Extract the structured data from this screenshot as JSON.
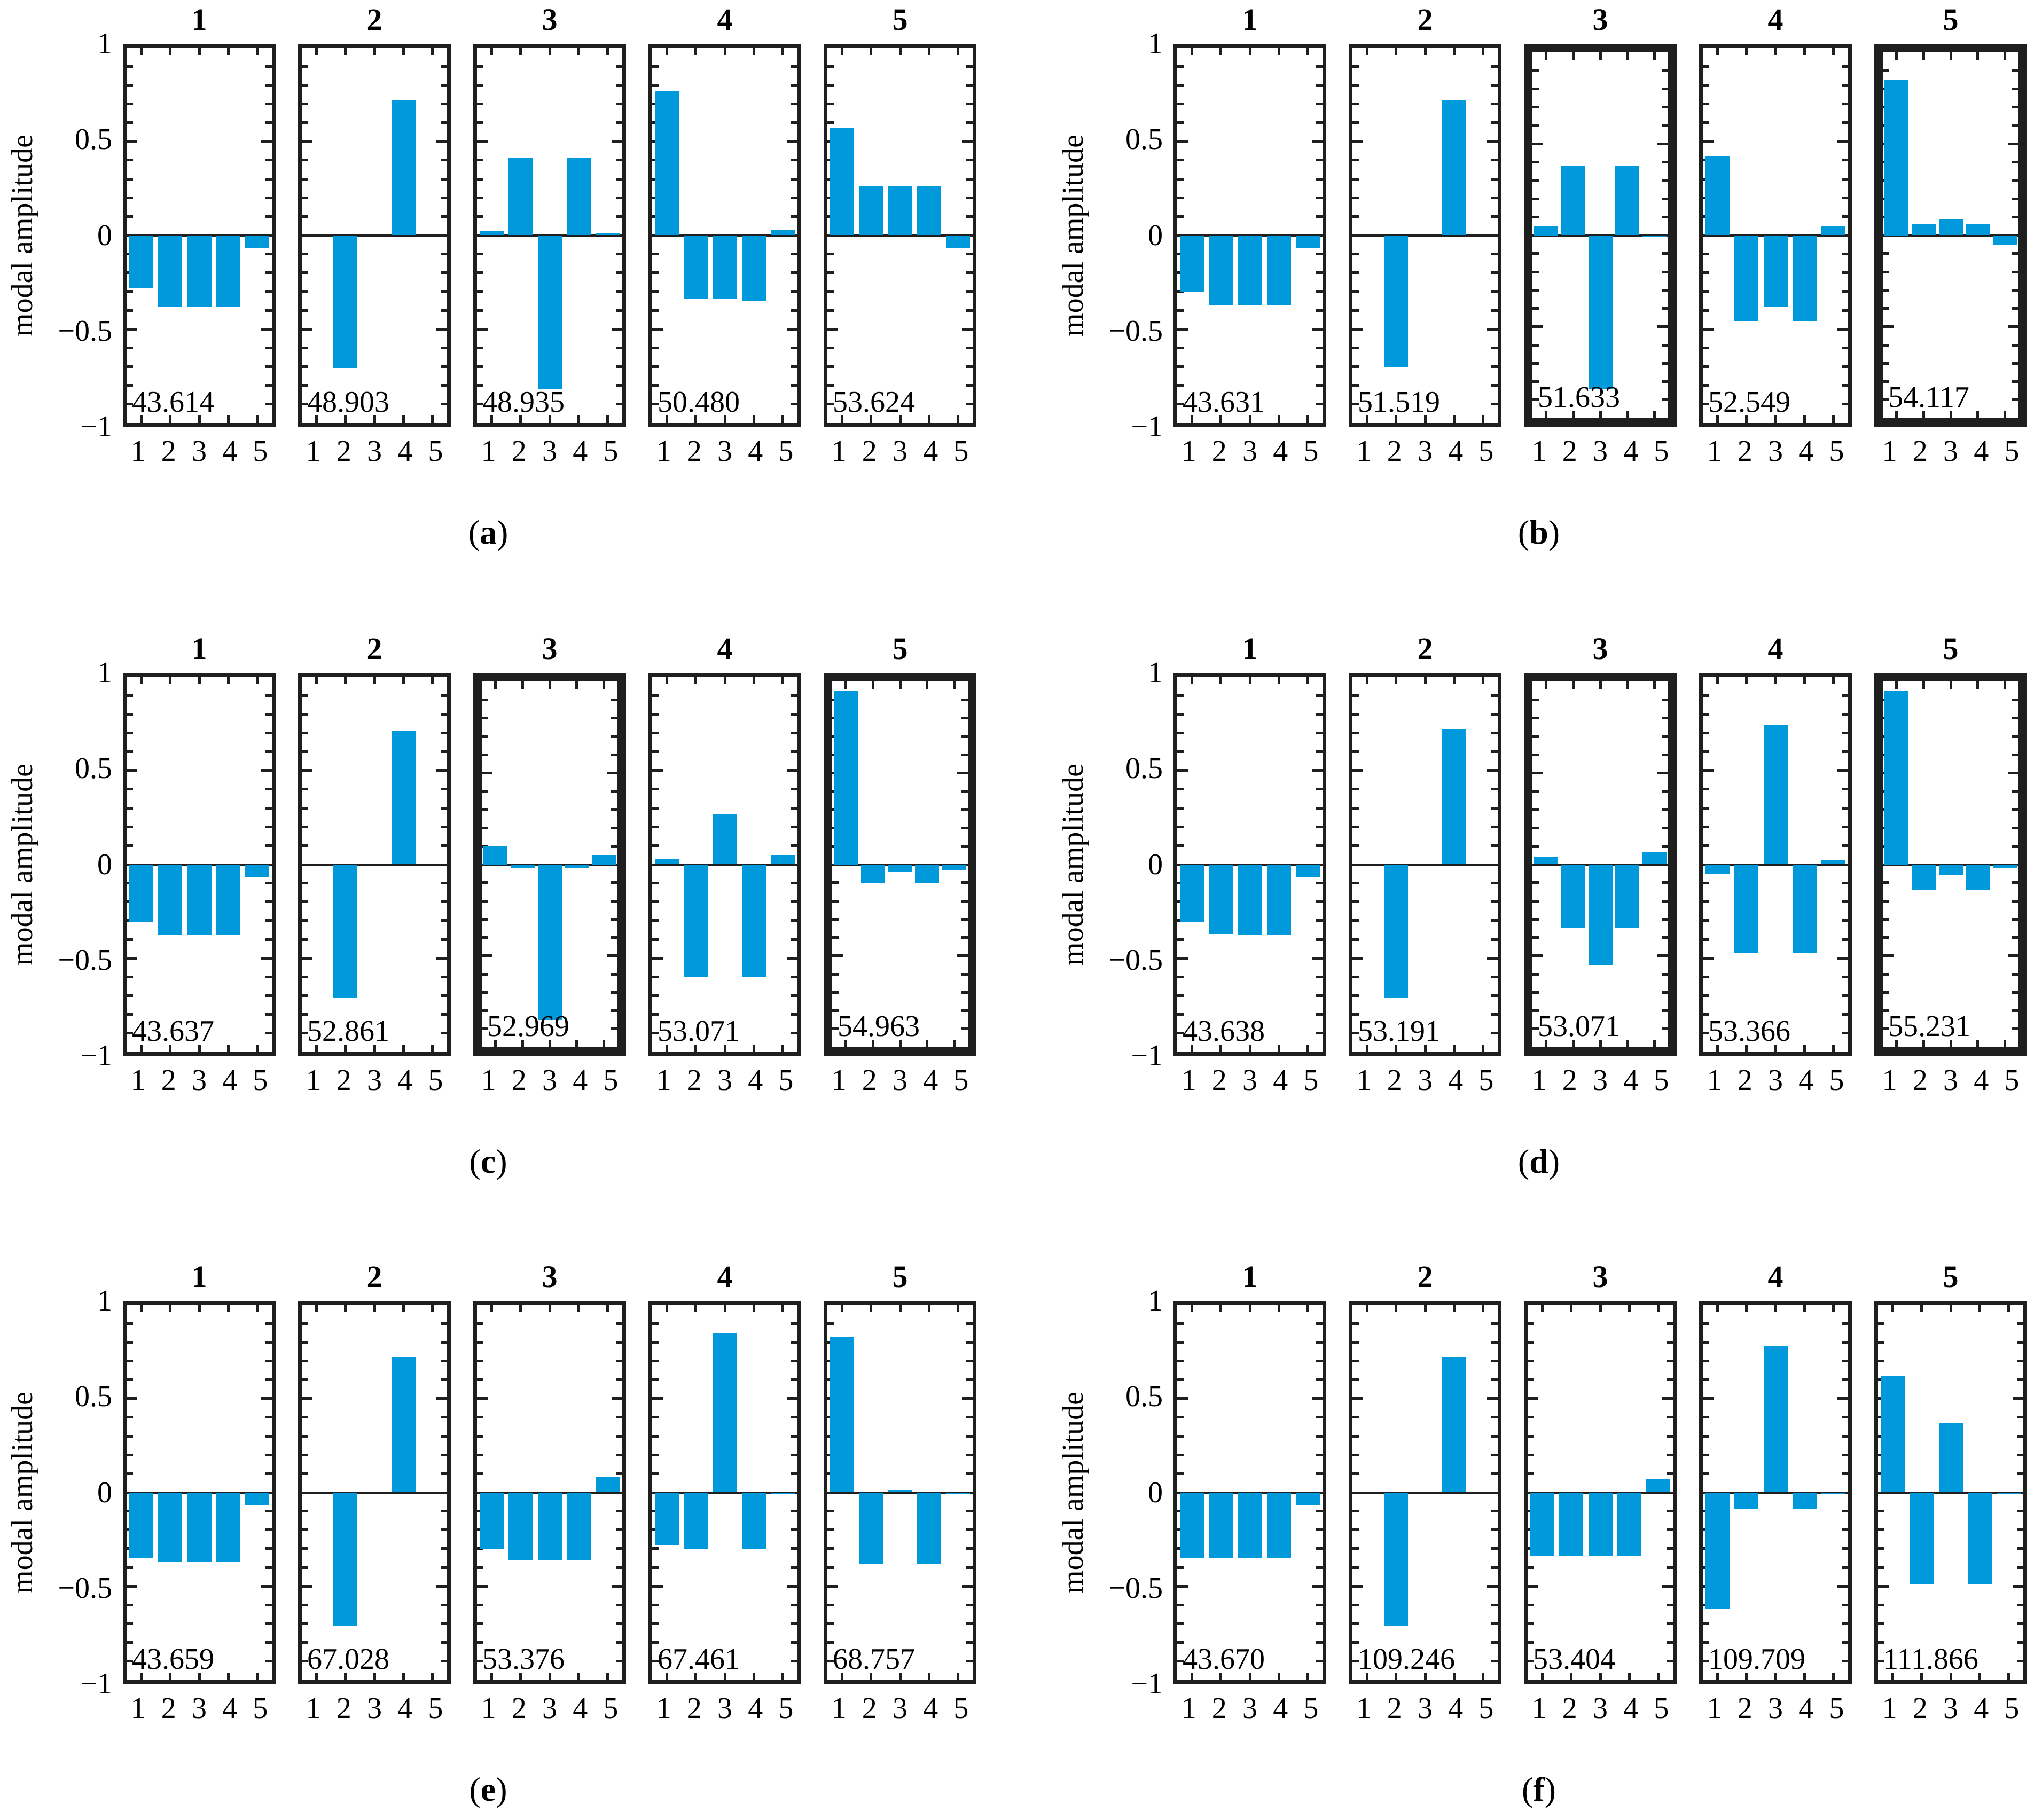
{
  "figure": {
    "background": "#ffffff",
    "style": {
      "bar_color": "#0099db",
      "axis_color": "#1f1f1f",
      "text_color": "#000000"
    },
    "yticklabels": [
      "1",
      "0.5",
      "0",
      "−0.5",
      "−1"
    ]
  },
  "chart_data": {
    "type": "bar",
    "ylabel": "modal amplitude",
    "ylim": [
      -1,
      1
    ],
    "yticks": [
      1,
      0.5,
      0,
      -0.5,
      -1
    ],
    "categories": [
      "1",
      "2",
      "3",
      "4",
      "5"
    ],
    "grid": false,
    "panels": [
      {
        "caption": "(a)",
        "letter": "a",
        "subplots": [
          {
            "title": "1",
            "freq": "43.614",
            "bold_border": false,
            "values": [
              -0.28,
              -0.38,
              -0.38,
              -0.38,
              -0.07
            ]
          },
          {
            "title": "2",
            "freq": "48.903",
            "bold_border": false,
            "values": [
              0,
              -0.71,
              0,
              0.72,
              0
            ]
          },
          {
            "title": "3",
            "freq": "48.935",
            "bold_border": false,
            "values": [
              0.02,
              0.41,
              -0.82,
              0.41,
              0.01
            ]
          },
          {
            "title": "4",
            "freq": "50.480",
            "bold_border": false,
            "values": [
              0.77,
              -0.34,
              -0.34,
              -0.35,
              0.03
            ]
          },
          {
            "title": "5",
            "freq": "53.624",
            "bold_border": false,
            "values": [
              0.57,
              0.26,
              0.26,
              0.26,
              -0.07
            ]
          }
        ]
      },
      {
        "caption": "(b)",
        "letter": "b",
        "subplots": [
          {
            "title": "1",
            "freq": "43.631",
            "bold_border": false,
            "values": [
              -0.3,
              -0.37,
              -0.37,
              -0.37,
              -0.07
            ]
          },
          {
            "title": "2",
            "freq": "51.519",
            "bold_border": false,
            "values": [
              0,
              -0.7,
              0,
              0.72,
              0
            ]
          },
          {
            "title": "3",
            "freq": "51.633",
            "bold_border": true,
            "values": [
              0.05,
              0.38,
              -0.84,
              0.38,
              -0.01
            ]
          },
          {
            "title": "4",
            "freq": "52.549",
            "bold_border": false,
            "values": [
              0.42,
              -0.46,
              -0.38,
              -0.46,
              0.05
            ]
          },
          {
            "title": "5",
            "freq": "54.117",
            "bold_border": true,
            "values": [
              0.85,
              0.06,
              0.09,
              0.06,
              -0.05
            ]
          }
        ]
      },
      {
        "caption": "(c)",
        "letter": "c",
        "subplots": [
          {
            "title": "1",
            "freq": "43.637",
            "bold_border": false,
            "values": [
              -0.31,
              -0.375,
              -0.375,
              -0.375,
              -0.07
            ]
          },
          {
            "title": "2",
            "freq": "52.861",
            "bold_border": false,
            "values": [
              0,
              -0.71,
              0,
              0.71,
              0
            ]
          },
          {
            "title": "3",
            "freq": "52.969",
            "bold_border": true,
            "values": [
              0.1,
              -0.02,
              -0.85,
              -0.02,
              0.05
            ]
          },
          {
            "title": "4",
            "freq": "53.071",
            "bold_border": false,
            "values": [
              0.03,
              -0.6,
              0.27,
              -0.6,
              0.05
            ]
          },
          {
            "title": "5",
            "freq": "54.963",
            "bold_border": true,
            "values": [
              0.95,
              -0.1,
              -0.04,
              -0.1,
              -0.03
            ]
          }
        ]
      },
      {
        "caption": "(d)",
        "letter": "d",
        "subplots": [
          {
            "title": "1",
            "freq": "43.638",
            "bold_border": false,
            "values": [
              -0.31,
              -0.37,
              -0.375,
              -0.375,
              -0.07
            ]
          },
          {
            "title": "2",
            "freq": "53.191",
            "bold_border": false,
            "values": [
              0,
              -0.71,
              0,
              0.72,
              0
            ]
          },
          {
            "title": "3",
            "freq": "53.071",
            "bold_border": true,
            "values": [
              0.04,
              -0.35,
              -0.55,
              -0.35,
              0.07
            ]
          },
          {
            "title": "4",
            "freq": "53.366",
            "bold_border": false,
            "values": [
              -0.05,
              -0.47,
              0.74,
              -0.47,
              0.02
            ]
          },
          {
            "title": "5",
            "freq": "55.231",
            "bold_border": true,
            "values": [
              0.95,
              -0.14,
              -0.06,
              -0.14,
              -0.02
            ]
          }
        ]
      },
      {
        "caption": "(e)",
        "letter": "e",
        "subplots": [
          {
            "title": "1",
            "freq": "43.659",
            "bold_border": false,
            "values": [
              -0.35,
              -0.37,
              -0.37,
              -0.37,
              -0.07
            ]
          },
          {
            "title": "2",
            "freq": "67.028",
            "bold_border": false,
            "values": [
              0,
              -0.71,
              0,
              0.72,
              0
            ]
          },
          {
            "title": "3",
            "freq": "53.376",
            "bold_border": false,
            "values": [
              -0.3,
              -0.36,
              -0.36,
              -0.36,
              0.08
            ]
          },
          {
            "title": "4",
            "freq": "67.461",
            "bold_border": false,
            "values": [
              -0.28,
              -0.3,
              0.85,
              -0.3,
              -0.01
            ]
          },
          {
            "title": "5",
            "freq": "68.757",
            "bold_border": false,
            "values": [
              0.83,
              -0.38,
              0.01,
              -0.38,
              -0.01
            ]
          }
        ]
      },
      {
        "caption": "(f)",
        "letter": "f",
        "subplots": [
          {
            "title": "1",
            "freq": "43.670",
            "bold_border": false,
            "values": [
              -0.35,
              -0.35,
              -0.35,
              -0.35,
              -0.07
            ]
          },
          {
            "title": "2",
            "freq": "109.246",
            "bold_border": false,
            "values": [
              0,
              -0.71,
              0,
              0.72,
              0
            ]
          },
          {
            "title": "3",
            "freq": "53.404",
            "bold_border": false,
            "values": [
              -0.34,
              -0.34,
              -0.34,
              -0.34,
              0.07
            ]
          },
          {
            "title": "4",
            "freq": "109.709",
            "bold_border": false,
            "values": [
              -0.62,
              -0.09,
              0.78,
              -0.09,
              -0.01
            ]
          },
          {
            "title": "5",
            "freq": "111.866",
            "bold_border": false,
            "values": [
              0.62,
              -0.49,
              0.37,
              -0.49,
              -0.01
            ]
          }
        ]
      }
    ]
  }
}
